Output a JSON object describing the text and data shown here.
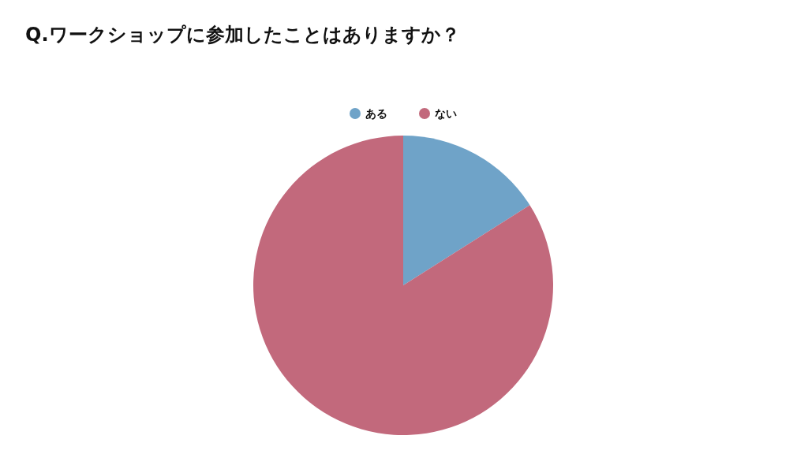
{
  "chart_data": {
    "type": "pie",
    "title": "Q.ワークショップに参加したことはありますか？",
    "categories": [
      "ある",
      "ない"
    ],
    "values": [
      16,
      84
    ],
    "colors": [
      "#6fa3c8",
      "#c2697c"
    ],
    "legend": "top"
  }
}
